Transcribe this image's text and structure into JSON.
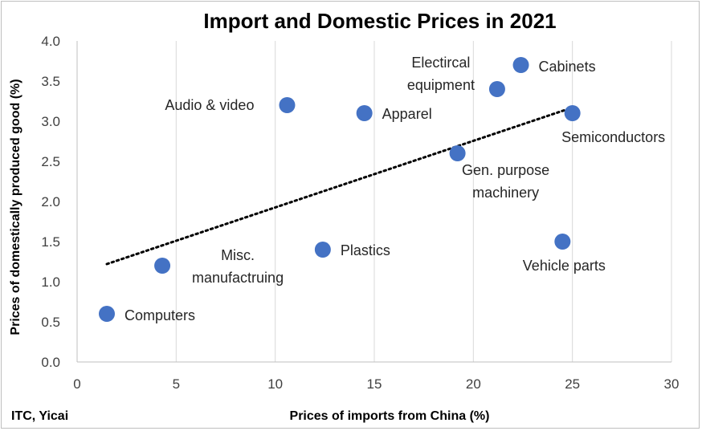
{
  "chart_data": {
    "type": "scatter",
    "title": "Import and Domestic Prices in 2021",
    "xlabel": "Prices of imports from China (%)",
    "ylabel": "Prices of domestically produced good  (%)",
    "xlim": [
      0,
      30
    ],
    "ylim": [
      0,
      4.0
    ],
    "x_ticks": [
      "0",
      "5",
      "10",
      "15",
      "20",
      "25",
      "30"
    ],
    "y_ticks": [
      "0.0",
      "0.5",
      "1.0",
      "1.5",
      "2.0",
      "2.5",
      "3.0",
      "3.5",
      "4.0"
    ],
    "grid": "vertical",
    "marker_color": "#4472c4",
    "trendline": {
      "style": "dotted",
      "x": [
        1.5,
        25
      ],
      "y": [
        1.22,
        3.17
      ]
    },
    "points": [
      {
        "label": [
          "Computers"
        ],
        "x": 1.5,
        "y": 0.6
      },
      {
        "label": [
          "Misc.",
          "manufactruing"
        ],
        "x": 4.3,
        "y": 1.2
      },
      {
        "label": [
          "Audio & video"
        ],
        "x": 10.6,
        "y": 3.2
      },
      {
        "label": [
          "Plastics"
        ],
        "x": 12.4,
        "y": 1.4
      },
      {
        "label": [
          "Apparel"
        ],
        "x": 14.5,
        "y": 3.1
      },
      {
        "label": [
          "Gen. purpose",
          "machinery"
        ],
        "x": 19.2,
        "y": 2.6
      },
      {
        "label": [
          "Electircal",
          "equipment"
        ],
        "x": 21.2,
        "y": 3.4
      },
      {
        "label": [
          "Cabinets"
        ],
        "x": 22.4,
        "y": 3.7
      },
      {
        "label": [
          "Vehicle parts"
        ],
        "x": 24.5,
        "y": 1.5
      },
      {
        "label": [
          "Semiconductors"
        ],
        "x": 25.0,
        "y": 3.1
      }
    ]
  },
  "source": "ITC, Yicai"
}
